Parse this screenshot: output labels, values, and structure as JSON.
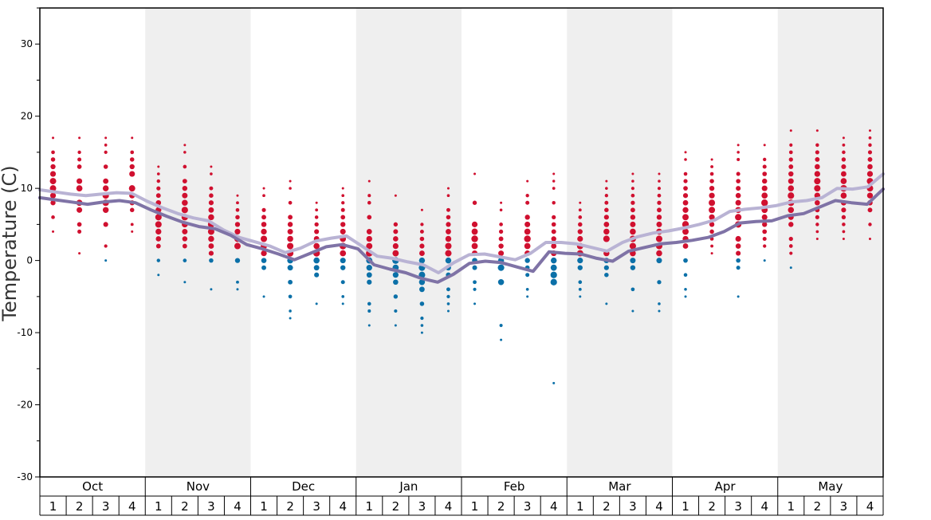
{
  "chart_data": {
    "type": "scatter",
    "title": "",
    "ylabel": "Temperature (C)",
    "ylim": [
      -30,
      35
    ],
    "yticks": [
      30,
      20,
      10,
      0,
      -10,
      -20,
      -30
    ],
    "grid": false,
    "shaded_alternate_months": true,
    "months": [
      "Oct",
      "Nov",
      "Dec",
      "Jan",
      "Feb",
      "Mar",
      "Apr",
      "May"
    ],
    "weeks": [
      "1",
      "2",
      "3",
      "4"
    ],
    "colors": {
      "warm_dot": "#d0102f",
      "cold_dot": "#0b70a8",
      "light_line": "#b9b3d4",
      "dark_line": "#7f73a6",
      "shade": "#efefef"
    },
    "series": [
      {
        "values": [
          9.8,
          9.5,
          9.2,
          9.0,
          9.2,
          9.4,
          9.3,
          8.2,
          7.3,
          6.5,
          5.9,
          5.5,
          4.2,
          3.2,
          2.6,
          2.0,
          1.1,
          1.7,
          2.7,
          3.1,
          3.4,
          2.0,
          0.6,
          0.3,
          -0.2,
          -0.6,
          -1.7,
          -0.3,
          0.8,
          0.9,
          0.5,
          0.1,
          1.0,
          2.5,
          2.5,
          2.3,
          1.8,
          1.3,
          2.5,
          3.3,
          3.8,
          4.1,
          4.5,
          5.0,
          5.6,
          6.8,
          7.1,
          7.3,
          7.6,
          8.1,
          8.3,
          8.7,
          10.0,
          9.9,
          10.2,
          12.0
        ]
      },
      {
        "values": [
          8.7,
          8.4,
          8.1,
          7.8,
          8.1,
          8.3,
          8.0,
          7.0,
          6.1,
          5.3,
          4.7,
          4.4,
          3.5,
          2.2,
          1.6,
          0.9,
          0.1,
          1.0,
          1.9,
          2.2,
          1.6,
          -0.6,
          -1.2,
          -1.7,
          -2.5,
          -3.0,
          -1.9,
          -0.4,
          -0.1,
          -0.3,
          -0.9,
          -1.5,
          1.2,
          1.0,
          0.9,
          0.3,
          -0.1,
          1.3,
          1.8,
          2.3,
          2.5,
          2.8,
          3.2,
          4.0,
          5.2,
          5.4,
          5.5,
          6.2,
          6.5,
          7.4,
          8.3,
          8.0,
          7.8,
          9.9
        ]
      }
    ],
    "scatter_points": [
      {
        "week": 1,
        "temps": [
          17,
          15,
          14,
          13,
          12,
          11,
          10,
          9,
          8,
          6,
          4
        ]
      },
      {
        "week": 2,
        "temps": [
          17,
          15,
          14,
          13,
          11,
          10,
          8,
          7,
          5,
          4,
          1
        ]
      },
      {
        "week": 3,
        "temps": [
          17,
          16,
          15,
          13,
          11,
          10,
          9,
          8,
          7,
          5,
          2,
          0
        ]
      },
      {
        "week": 4,
        "temps": [
          17,
          15,
          14,
          13,
          12,
          10,
          9,
          8,
          7,
          5,
          4
        ]
      },
      {
        "week": 5,
        "temps": [
          13,
          12,
          11,
          10,
          9,
          8,
          7,
          6,
          5,
          4,
          3,
          2,
          0,
          -2
        ]
      },
      {
        "week": 6,
        "temps": [
          16,
          15,
          13,
          11,
          10,
          9,
          8,
          7,
          6,
          5,
          4,
          3,
          2,
          0,
          -3
        ]
      },
      {
        "week": 7,
        "temps": [
          13,
          12,
          10,
          9,
          8,
          7,
          6,
          5,
          4,
          3,
          2,
          1,
          0,
          -4
        ]
      },
      {
        "week": 8,
        "temps": [
          9,
          8,
          7,
          6,
          5,
          4,
          3,
          2,
          0,
          -3,
          -4
        ]
      },
      {
        "week": 9,
        "temps": [
          10,
          9,
          7,
          6,
          5,
          4,
          3,
          2,
          1,
          0,
          -1,
          -5
        ]
      },
      {
        "week": 10,
        "temps": [
          11,
          10,
          8,
          6,
          5,
          4,
          3,
          2,
          1,
          0,
          -1,
          -3,
          -5,
          -7,
          -8
        ]
      },
      {
        "week": 11,
        "temps": [
          8,
          7,
          6,
          5,
          4,
          3,
          2,
          1,
          0,
          -1,
          -2,
          -6
        ]
      },
      {
        "week": 12,
        "temps": [
          10,
          9,
          8,
          7,
          6,
          5,
          4,
          3,
          2,
          1,
          0,
          -1,
          -3,
          -5,
          -6
        ]
      },
      {
        "week": 13,
        "temps": [
          11,
          9,
          8,
          6,
          4,
          3,
          2,
          1,
          0,
          -1,
          -2,
          -3,
          -6,
          -7,
          -9
        ]
      },
      {
        "week": 14,
        "temps": [
          9,
          5,
          4,
          3,
          2,
          1,
          0,
          -1,
          -2,
          -3,
          -5,
          -7,
          -9
        ]
      },
      {
        "week": 15,
        "temps": [
          7,
          5,
          4,
          3,
          2,
          1,
          0,
          -1,
          -2,
          -3,
          -4,
          -6,
          -8,
          -9,
          -10
        ]
      },
      {
        "week": 16,
        "temps": [
          10,
          9,
          7,
          6,
          5,
          4,
          3,
          2,
          1,
          0,
          -1,
          -2,
          -4,
          -5,
          -6,
          -7
        ]
      },
      {
        "week": 17,
        "temps": [
          12,
          8,
          5,
          4,
          3,
          2,
          1,
          0,
          -1,
          -3,
          -4,
          -6
        ]
      },
      {
        "week": 18,
        "temps": [
          8,
          7,
          5,
          4,
          3,
          2,
          1,
          0,
          -1,
          -3,
          -9,
          -11
        ]
      },
      {
        "week": 19,
        "temps": [
          11,
          9,
          8,
          6,
          5,
          4,
          3,
          2,
          1,
          0,
          -1,
          -2,
          -4,
          -5
        ]
      },
      {
        "week": 20,
        "temps": [
          12,
          11,
          10,
          8,
          6,
          5,
          4,
          3,
          2,
          1,
          0,
          -1,
          -2,
          -3,
          -17
        ]
      },
      {
        "week": 21,
        "temps": [
          8,
          7,
          6,
          5,
          4,
          3,
          2,
          1,
          0,
          -1,
          -3,
          -4,
          -5
        ]
      },
      {
        "week": 22,
        "temps": [
          11,
          10,
          9,
          8,
          7,
          6,
          5,
          4,
          3,
          1,
          0,
          -1,
          -2,
          -6
        ]
      },
      {
        "week": 23,
        "temps": [
          12,
          11,
          10,
          9,
          8,
          7,
          6,
          5,
          4,
          3,
          2,
          1,
          0,
          -1,
          -4,
          -7
        ]
      },
      {
        "week": 24,
        "temps": [
          12,
          11,
          10,
          9,
          8,
          7,
          6,
          5,
          4,
          3,
          2,
          1,
          0,
          -3,
          -6,
          -7
        ]
      },
      {
        "week": 25,
        "temps": [
          15,
          14,
          12,
          11,
          10,
          9,
          8,
          7,
          6,
          5,
          4,
          3,
          2,
          0,
          -2,
          -4,
          -5
        ]
      },
      {
        "week": 26,
        "temps": [
          14,
          13,
          12,
          11,
          10,
          9,
          8,
          7,
          6,
          5,
          4,
          3,
          2,
          1
        ]
      },
      {
        "week": 27,
        "temps": [
          16,
          15,
          14,
          12,
          11,
          10,
          9,
          8,
          7,
          6,
          5,
          3,
          2,
          1,
          0,
          -1,
          -5
        ]
      },
      {
        "week": 28,
        "temps": [
          16,
          14,
          13,
          12,
          11,
          10,
          9,
          8,
          7,
          6,
          5,
          4,
          3,
          2,
          0
        ]
      },
      {
        "week": 29,
        "temps": [
          18,
          16,
          15,
          14,
          13,
          12,
          11,
          10,
          9,
          8,
          7,
          6,
          5,
          3,
          2,
          1,
          -1
        ]
      },
      {
        "week": 30,
        "temps": [
          18,
          16,
          15,
          14,
          13,
          12,
          11,
          10,
          9,
          8,
          7,
          6,
          5,
          4,
          3
        ]
      },
      {
        "week": 31,
        "temps": [
          17,
          16,
          15,
          14,
          13,
          12,
          11,
          10,
          9,
          8,
          7,
          6,
          5,
          4,
          3
        ]
      },
      {
        "week": 32,
        "temps": [
          18,
          17,
          16,
          15,
          14,
          13,
          12,
          11,
          10,
          9,
          8,
          7,
          5,
          3
        ]
      }
    ]
  }
}
